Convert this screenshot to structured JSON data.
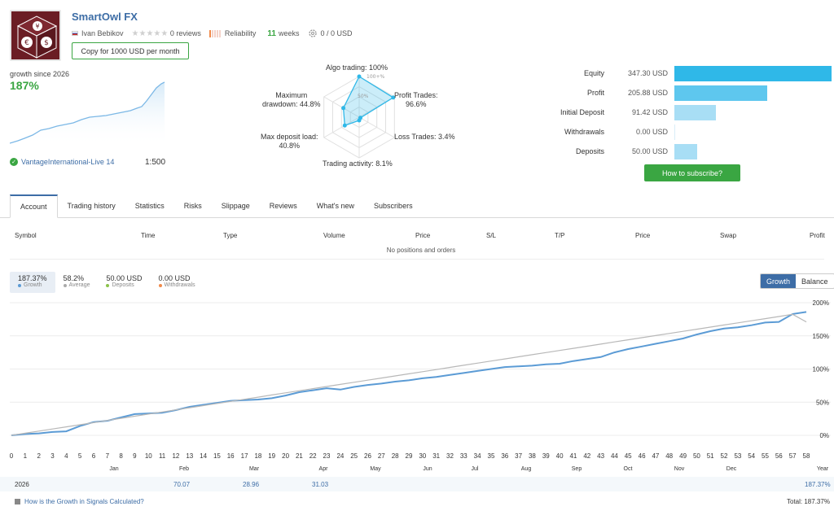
{
  "header": {
    "title": "SmartOwl FX",
    "author": "Ivan Bebikov",
    "reviews": "0 reviews",
    "reliability": "Reliability",
    "weeks_num": "11",
    "weeks_label": "weeks",
    "subscribers": "0 / 0 USD",
    "copy_button": "Copy for 1000 USD per month"
  },
  "growth": {
    "label": "growth since 2026",
    "value": "187%",
    "broker": "VantageInternational-Live 14",
    "leverage": "1:500"
  },
  "radar": {
    "algo": "Algo trading: 100%",
    "inner_100": "100+%",
    "inner_50": "50%",
    "profit_trades_1": "Profit Trades:",
    "profit_trades_2": "96.6%",
    "loss_trades": "Loss Trades: 3.4%",
    "activity": "Trading activity: 8.1%",
    "deposit_load_1": "Max deposit load:",
    "deposit_load_2": "40.8%",
    "drawdown_1": "Maximum",
    "drawdown_2": "drawdown: 44.8%",
    "values": [
      1.0,
      0.966,
      0.034,
      0.081,
      0.408,
      0.448
    ]
  },
  "stats": [
    {
      "label": "Equity",
      "value": "347.30 USD",
      "fraction": 1.0,
      "color": "#2fb8e8"
    },
    {
      "label": "Profit",
      "value": "205.88 USD",
      "fraction": 0.593,
      "color": "#5ec7ee"
    },
    {
      "label": "Initial Deposit",
      "value": "91.42 USD",
      "fraction": 0.263,
      "color": "#a8def5"
    },
    {
      "label": "Withdrawals",
      "value": "0.00 USD",
      "fraction": 0.0,
      "color": "#a8def5"
    },
    {
      "label": "Deposits",
      "value": "50.00 USD",
      "fraction": 0.144,
      "color": "#a8def5"
    }
  ],
  "subscribe_button": "How to subscribe?",
  "tabs": [
    "Account",
    "Trading history",
    "Statistics",
    "Risks",
    "Slippage",
    "Reviews",
    "What's new",
    "Subscribers"
  ],
  "table": {
    "headers": [
      "Symbol",
      "Time",
      "Type",
      "Volume",
      "Price",
      "S/L",
      "T/P",
      "Price",
      "Swap",
      "Profit"
    ],
    "empty": "No positions and orders"
  },
  "summary": [
    {
      "value": "187.37%",
      "label": "Growth",
      "color": "#5b9bd5"
    },
    {
      "value": "58.2%",
      "label": "Average",
      "color": "#aaaaaa"
    },
    {
      "value": "50.00 USD",
      "label": "Deposits",
      "color": "#8bc34a"
    },
    {
      "value": "0.00 USD",
      "label": "Withdrawals",
      "color": "#f08a4b"
    }
  ],
  "toggle": {
    "growth": "Growth",
    "balance": "Balance"
  },
  "chart_data": {
    "type": "line",
    "x": [
      0,
      1,
      2,
      3,
      4,
      5,
      6,
      7,
      8,
      9,
      10,
      11,
      12,
      13,
      14,
      15,
      16,
      17,
      18,
      19,
      20,
      21,
      22,
      23,
      24,
      25,
      26,
      27,
      28,
      29,
      30,
      31,
      32,
      33,
      34,
      35,
      36,
      37,
      38,
      39,
      40,
      41,
      42,
      43,
      44,
      45,
      46,
      47,
      48,
      49,
      50,
      51,
      52,
      53,
      54,
      55,
      56,
      57,
      58
    ],
    "x_label_last": "Year",
    "months": [
      "Jan",
      "Feb",
      "Mar",
      "Apr",
      "May",
      "Jun",
      "Jul",
      "Aug",
      "Sep",
      "Oct",
      "Nov",
      "Dec"
    ],
    "y_ticks": [
      "0%",
      "50%",
      "100%",
      "150%",
      "200%"
    ],
    "ylim": [
      0,
      200
    ],
    "series": [
      {
        "values": [
          0,
          2,
          3,
          5,
          6,
          14,
          20,
          22,
          27,
          32,
          33,
          34,
          38,
          43,
          46,
          49,
          52,
          53,
          54,
          56,
          60,
          65,
          68,
          71,
          69,
          73,
          76,
          78,
          81,
          83,
          86,
          88,
          91,
          94,
          97,
          100,
          103,
          104,
          105,
          107,
          108,
          112,
          115,
          118,
          125,
          130,
          134,
          138,
          142,
          146,
          152,
          157,
          161,
          163,
          166,
          170,
          171,
          183,
          186
        ],
        "color": "#5b9bd5"
      },
      {
        "values": [
          0,
          3.2,
          6.4,
          9.6,
          12.8,
          16,
          19.2,
          22.4,
          25.6,
          28.8,
          32,
          35.2,
          38.4,
          41.6,
          44.8,
          48,
          51.2,
          54.4,
          57.6,
          60.8,
          64,
          67.2,
          70.4,
          73.6,
          76.8,
          80,
          83.2,
          86.4,
          89.6,
          92.8,
          96,
          99.2,
          102.4,
          105.6,
          108.8,
          112,
          115.2,
          118.4,
          121.6,
          124.8,
          128,
          131.2,
          134.4,
          137.6,
          140.8,
          144,
          147.2,
          150.4,
          153.6,
          156.8,
          160,
          163.2,
          166.4,
          169.6,
          172.8,
          176,
          179.2,
          182.4,
          171
        ],
        "color": "#b8b8b8"
      }
    ]
  },
  "year_row": {
    "year": "2026",
    "feb": "70.07",
    "mar": "28.96",
    "apr": "31.03",
    "total": "187.37%"
  },
  "footer": {
    "link": "How is the Growth in Signals Calculated?",
    "total": "Total: 187.37%"
  }
}
